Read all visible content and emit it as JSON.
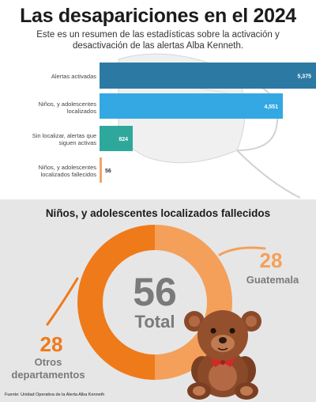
{
  "header": {
    "title": "Las desapariciones en el 2024",
    "subtitle": "Este es un resumen de las estadísticas sobre la activación y desactivación de las alertas Alba Kenneth."
  },
  "chart_data": [
    {
      "type": "bar",
      "orientation": "horizontal",
      "categories": [
        "Alertas activadas",
        "Niños, y adolescentes localizados",
        "Sin localizar, alertas que siguen activas",
        "Niños, y adolescentes localizados fallecidos"
      ],
      "values": [
        5375,
        4551,
        824,
        56
      ],
      "value_labels": [
        "5,375",
        "4,551",
        "824",
        "56"
      ],
      "colors": [
        "#2c7aa4",
        "#33a8e2",
        "#2fa89c",
        "#f4a46a"
      ],
      "xlim": [
        0,
        5375
      ],
      "grid": false
    },
    {
      "type": "pie",
      "donut": true,
      "title": "Niños, y adolescentes localizados fallecidos",
      "center_value": "56",
      "center_label": "Total",
      "slices": [
        {
          "name": "Guatemala",
          "value": 28,
          "label": "28",
          "color": "#f4a05a"
        },
        {
          "name": "Otros departamentos",
          "value": 28,
          "label": "28",
          "color": "#ef7a1a"
        }
      ]
    }
  ],
  "labels": {
    "guatemala": "Guatemala",
    "otros_line1": "Otros",
    "otros_line2": "departamentos"
  },
  "source": "Fuente: Unidad Operativa de la Alerta Alba Kenneth",
  "icons": [
    "teddy-bear-icon",
    "face-mask-icon"
  ],
  "colors": {
    "accent_orange": "#ef7a1a",
    "light_orange": "#f4a05a",
    "text_gray": "#7a7a7a"
  }
}
